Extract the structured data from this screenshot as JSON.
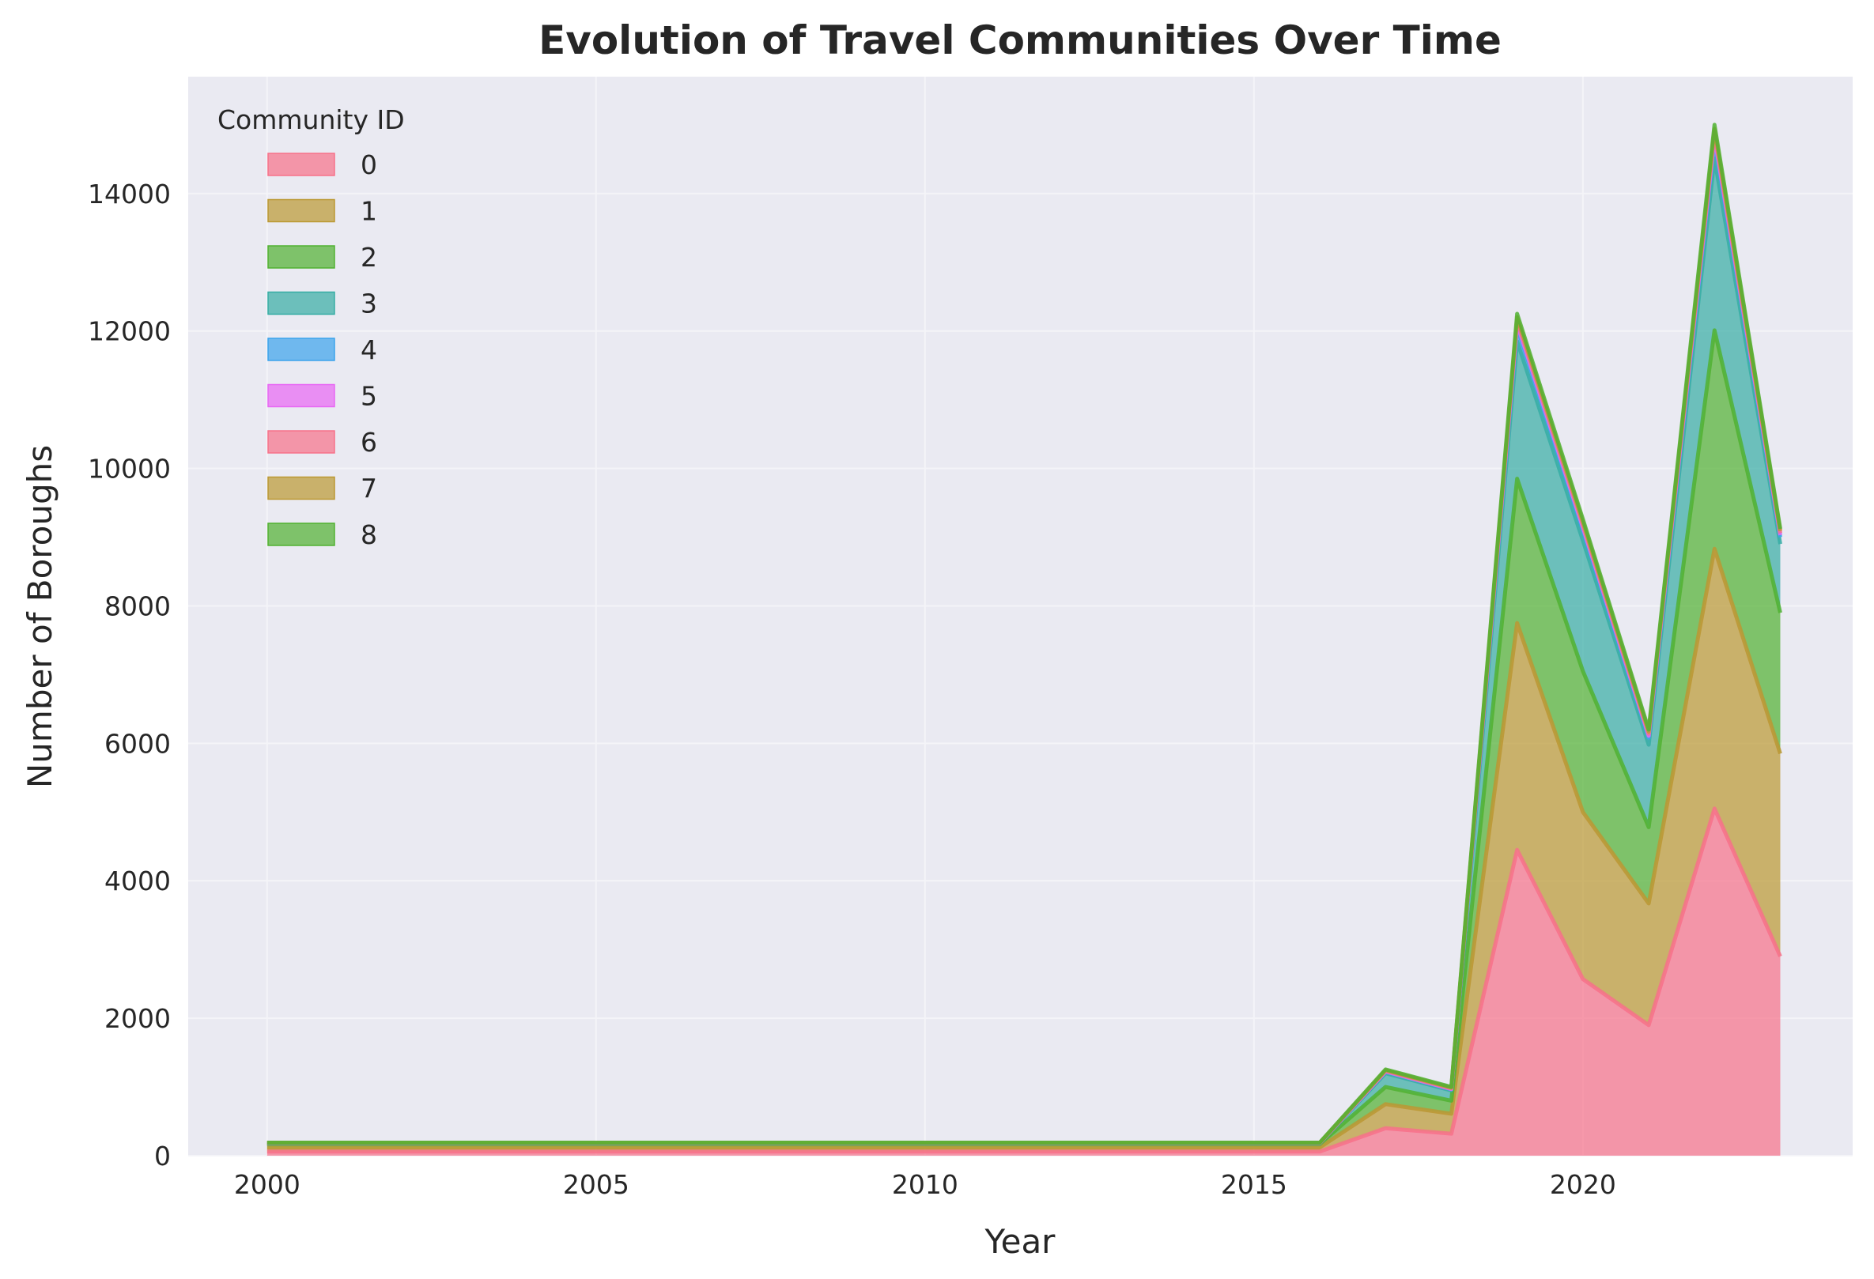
{
  "chart_data": {
    "type": "area",
    "title": "Evolution of Travel Communities Over Time",
    "xlabel": "Year",
    "ylabel": "Number of Boroughs",
    "xlim": [
      1998.8,
      2024.1
    ],
    "ylim": [
      0,
      15700
    ],
    "x_ticks": [
      2000,
      2005,
      2010,
      2015,
      2020
    ],
    "y_ticks": [
      0,
      2000,
      4000,
      6000,
      8000,
      10000,
      12000,
      14000
    ],
    "grid": true,
    "stacked": true,
    "legend": {
      "title": "Community ID",
      "placement": "top-left",
      "entries": [
        "0",
        "1",
        "2",
        "3",
        "4",
        "5",
        "6",
        "7",
        "8"
      ]
    },
    "x": [
      2000,
      2001,
      2002,
      2003,
      2004,
      2005,
      2006,
      2007,
      2008,
      2009,
      2010,
      2011,
      2012,
      2013,
      2014,
      2015,
      2016,
      2017,
      2018,
      2019,
      2020,
      2021,
      2022,
      2023
    ],
    "series": [
      {
        "name": "0",
        "color": "#f77189",
        "values": [
          60,
          60,
          60,
          60,
          60,
          60,
          60,
          60,
          60,
          60,
          60,
          60,
          60,
          60,
          60,
          60,
          60,
          400,
          320,
          4450,
          2570,
          1900,
          5050,
          2900
        ]
      },
      {
        "name": "1",
        "color": "#bb9832",
        "values": [
          60,
          60,
          60,
          60,
          60,
          60,
          60,
          60,
          60,
          60,
          60,
          60,
          60,
          60,
          60,
          60,
          60,
          350,
          290,
          3300,
          2430,
          1770,
          3780,
          2950
        ]
      },
      {
        "name": "2",
        "color": "#50b131",
        "values": [
          50,
          50,
          50,
          50,
          50,
          50,
          50,
          50,
          50,
          50,
          50,
          50,
          50,
          50,
          50,
          50,
          50,
          250,
          190,
          2100,
          2050,
          1110,
          3180,
          2050
        ]
      },
      {
        "name": "3",
        "color": "#36ada4",
        "values": [
          10,
          10,
          10,
          10,
          10,
          10,
          10,
          10,
          10,
          10,
          10,
          10,
          10,
          10,
          10,
          10,
          10,
          200,
          150,
          2000,
          1900,
          1200,
          2500,
          1000
        ]
      },
      {
        "name": "4",
        "color": "#3ba3ec",
        "values": [
          2,
          2,
          2,
          2,
          2,
          2,
          2,
          2,
          2,
          2,
          2,
          2,
          2,
          2,
          2,
          2,
          2,
          20,
          15,
          200,
          150,
          100,
          250,
          100
        ]
      },
      {
        "name": "5",
        "color": "#e866f4",
        "values": [
          2,
          2,
          2,
          2,
          2,
          2,
          2,
          2,
          2,
          2,
          2,
          2,
          2,
          2,
          2,
          2,
          2,
          5,
          5,
          50,
          40,
          30,
          60,
          30
        ]
      },
      {
        "name": "6",
        "color": "#f77189",
        "values": [
          2,
          2,
          2,
          2,
          2,
          2,
          2,
          2,
          2,
          2,
          2,
          2,
          2,
          2,
          2,
          2,
          2,
          10,
          10,
          50,
          40,
          30,
          60,
          30
        ]
      },
      {
        "name": "7",
        "color": "#bb9832",
        "values": [
          2,
          2,
          2,
          2,
          2,
          2,
          2,
          2,
          2,
          2,
          2,
          2,
          2,
          2,
          2,
          2,
          2,
          10,
          10,
          50,
          40,
          30,
          60,
          30
        ]
      },
      {
        "name": "8",
        "color": "#50b131",
        "values": [
          2,
          2,
          2,
          2,
          2,
          2,
          2,
          2,
          2,
          2,
          2,
          2,
          2,
          2,
          2,
          2,
          2,
          10,
          10,
          50,
          40,
          30,
          60,
          30
        ]
      }
    ],
    "colors": {
      "plot_background": "#eaeaf2",
      "grid": "#f4f4f8",
      "text": "#262626"
    }
  }
}
